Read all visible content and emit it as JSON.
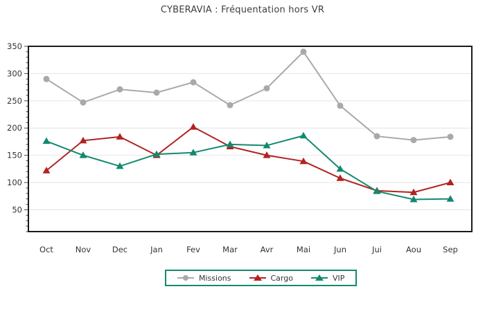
{
  "chart_data": {
    "type": "line",
    "title": "CYBERAVIA : Fréquentation hors VR",
    "categories": [
      "Oct",
      "Nov",
      "Dec",
      "Jan",
      "Fev",
      "Mar",
      "Avr",
      "Mai",
      "Jun",
      "Jui",
      "Aou",
      "Sep"
    ],
    "series": [
      {
        "name": "Missions",
        "color": "#a9a9a9",
        "marker": "circle",
        "values": [
          290,
          247,
          271,
          265,
          284,
          242,
          273,
          340,
          241,
          185,
          178,
          184
        ]
      },
      {
        "name": "Cargo",
        "color": "#b22222",
        "marker": "triangle",
        "values": [
          122,
          177,
          184,
          150,
          202,
          166,
          150,
          139,
          108,
          85,
          82,
          100
        ]
      },
      {
        "name": "VIP",
        "color": "#12896e",
        "marker": "triangle",
        "values": [
          176,
          150,
          130,
          152,
          155,
          170,
          168,
          186,
          125,
          84,
          69,
          70
        ]
      }
    ],
    "xlabel": "",
    "ylabel": "",
    "ylim": [
      10,
      350
    ],
    "yticks": [
      50,
      100,
      150,
      200,
      250,
      300,
      350
    ],
    "minor_tick_step": 10,
    "grid": "horizontal-major",
    "grid_color": "#e4e4e4",
    "axis_color": "#000000",
    "tick_label_color": "#333333",
    "legend": {
      "position": "bottom-center",
      "border_color": "#12896e"
    }
  }
}
